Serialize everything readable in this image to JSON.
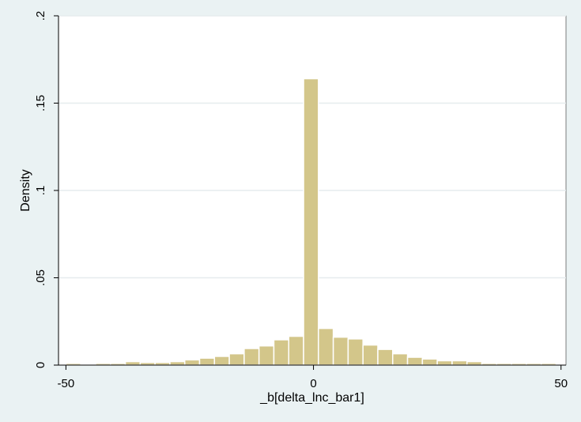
{
  "chart_data": {
    "type": "bar",
    "subtype": "histogram",
    "xlabel": "_b[delta_lnc_bar1]",
    "ylabel": "Density",
    "xlim": [
      -51.5,
      51
    ],
    "ylim": [
      0,
      0.2
    ],
    "x_ticks": [
      -50,
      0,
      50
    ],
    "x_tick_labels": [
      "-50",
      "0",
      "50"
    ],
    "y_ticks": [
      0,
      0.05,
      0.1,
      0.15,
      0.2
    ],
    "y_tick_labels": [
      "0",
      ".05",
      ".1",
      ".15",
      ".2"
    ],
    "grid": true,
    "bin_width": 3,
    "bins_start": [
      -50,
      -47,
      -44,
      -41,
      -38,
      -35,
      -32,
      -29,
      -26,
      -23,
      -20,
      -17,
      -14,
      -11,
      -8,
      -5,
      -2,
      1,
      4,
      7,
      10,
      13,
      16,
      19,
      22,
      25,
      28,
      31,
      34,
      37,
      40,
      43,
      46
    ],
    "values": [
      0.001,
      0.0005,
      0.001,
      0.001,
      0.002,
      0.0015,
      0.0015,
      0.002,
      0.003,
      0.004,
      0.005,
      0.0065,
      0.0095,
      0.011,
      0.0145,
      0.0165,
      0.164,
      0.021,
      0.016,
      0.015,
      0.0115,
      0.009,
      0.0065,
      0.0045,
      0.0035,
      0.0025,
      0.0025,
      0.002,
      0.001,
      0.001,
      0.001,
      0.001,
      0.001
    ],
    "colors": {
      "bar_fill": "#d3c68a",
      "bar_stroke": "#ffffff",
      "plot_bg": "#ffffff",
      "outer_bg": "#eaf2f3",
      "grid": "#e6ecee"
    }
  }
}
